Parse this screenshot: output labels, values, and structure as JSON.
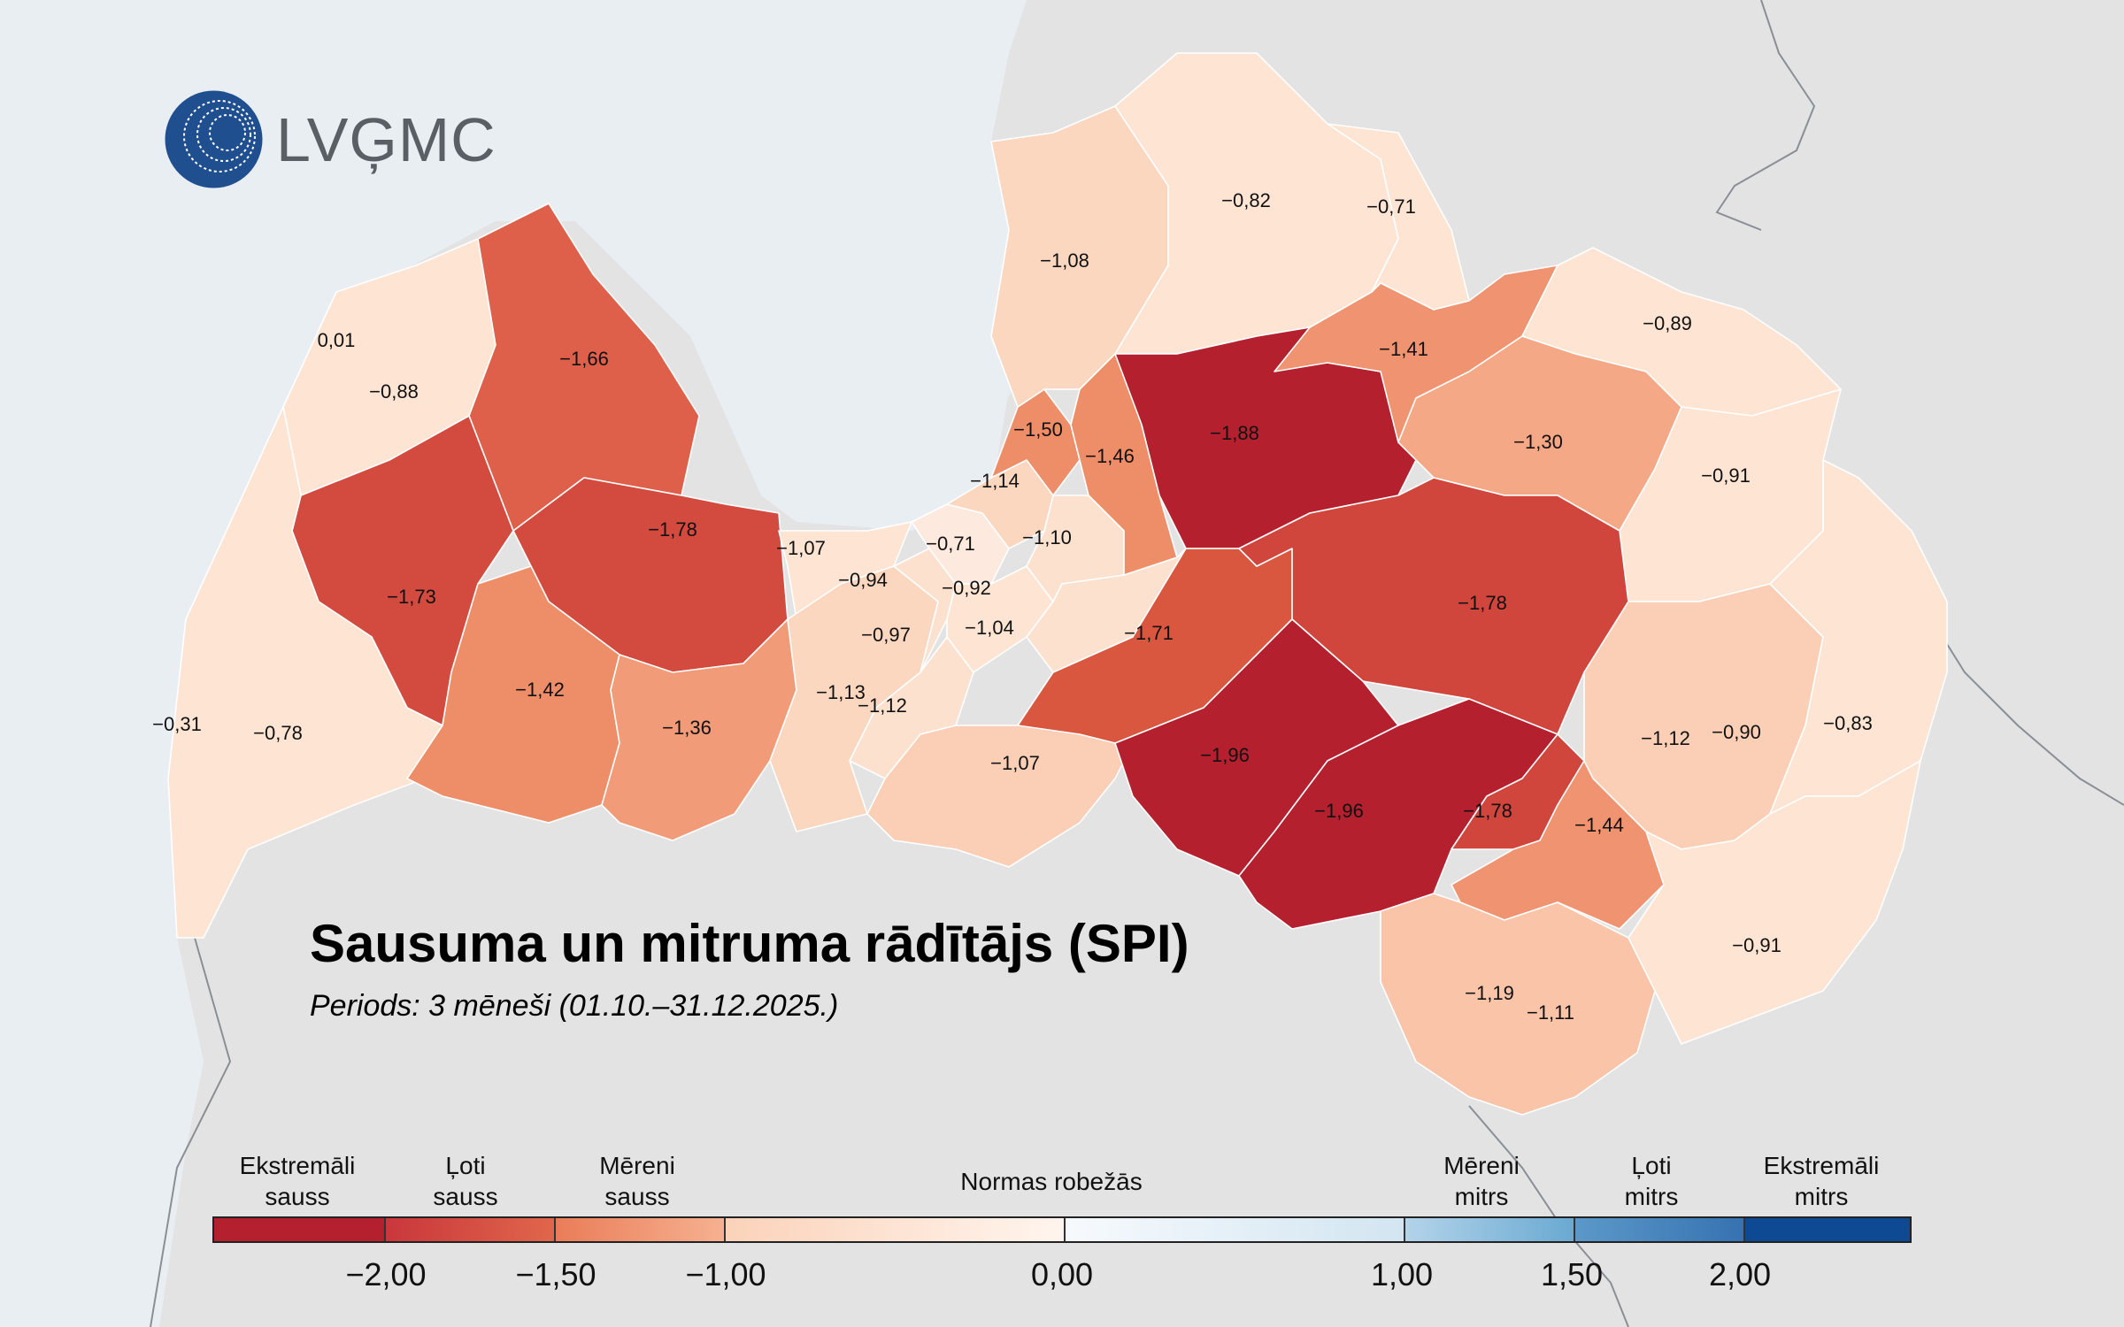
{
  "logo": {
    "text": "LVĢMC",
    "icon": "lvgmc-globe-logo"
  },
  "title": "Sausuma un mitruma rādītājs (SPI)",
  "subtitle": "Periods: 3 mēneši (01.10.–31.12.2025.)",
  "colors": {
    "sea": "#e9eef3",
    "land_outside": "#e3e3e3",
    "border": "#8a8f96",
    "extreme_dry": "#b4202e",
    "very_dry": "#d0453c",
    "moderately_dry": "#ed8a64",
    "near_normal_dry": "#f9d0b6",
    "near_normal": "#fde4d3",
    "normal_neutral": "#ffffff",
    "near_normal_wet": "#d2e5f1",
    "moderately_wet": "#6aa9d2",
    "very_wet": "#3d7db9",
    "extreme_wet": "#0d4a93"
  },
  "legend": {
    "classes": [
      {
        "label_line1": "Ekstremāli",
        "label_line2": "sauss"
      },
      {
        "label_line1": "Ļoti",
        "label_line2": "sauss"
      },
      {
        "label_line1": "Mēreni",
        "label_line2": "sauss"
      },
      {
        "label_line1": "Normas robežās",
        "label_line2": ""
      },
      {
        "label_line1": "Mēreni",
        "label_line2": "mitrs"
      },
      {
        "label_line1": "Ļoti",
        "label_line2": "mitrs"
      },
      {
        "label_line1": "Ekstremāli",
        "label_line2": "mitrs"
      }
    ],
    "ticks": [
      "−2,00",
      "−1,50",
      "−1,00",
      "0,00",
      "1,00",
      "1,50",
      "2,00"
    ],
    "range": [
      -2.5,
      2.5
    ]
  },
  "regions": [
    {
      "label": "0,01",
      "value": 0.01
    },
    {
      "label": "−0,88",
      "value": -0.88
    },
    {
      "label": "−1,66",
      "value": -1.66
    },
    {
      "label": "−1,73",
      "value": -1.73
    },
    {
      "label": "−1,78",
      "value": -1.78
    },
    {
      "label": "−0,31",
      "value": -0.31
    },
    {
      "label": "−0,78",
      "value": -0.78
    },
    {
      "label": "−1,42",
      "value": -1.42
    },
    {
      "label": "−1,36",
      "value": -1.36
    },
    {
      "label": "−1,07",
      "value": -1.07
    },
    {
      "label": "−0,94",
      "value": -0.94
    },
    {
      "label": "−0,97",
      "value": -0.97
    },
    {
      "label": "−1,13",
      "value": -1.13
    },
    {
      "label": "−1,12",
      "value": -1.12
    },
    {
      "label": "−1,07",
      "value": -1.07
    },
    {
      "label": "−1,08",
      "value": -1.08
    },
    {
      "label": "−1,50",
      "value": -1.5
    },
    {
      "label": "−1,14",
      "value": -1.14
    },
    {
      "label": "−1,46",
      "value": -1.46
    },
    {
      "label": "−0,71",
      "value": -0.71
    },
    {
      "label": "−1,10",
      "value": -1.1
    },
    {
      "label": "−0,92",
      "value": -0.92
    },
    {
      "label": "−1,04",
      "value": -1.04
    },
    {
      "label": "−0,82",
      "value": -0.82
    },
    {
      "label": "−0,71",
      "value": -0.71
    },
    {
      "label": "−1,88",
      "value": -1.88
    },
    {
      "label": "−1,41",
      "value": -1.41
    },
    {
      "label": "−1,71",
      "value": -1.71
    },
    {
      "label": "−1,30",
      "value": -1.3
    },
    {
      "label": "−0,89",
      "value": -0.89
    },
    {
      "label": "−0,91",
      "value": -0.91
    },
    {
      "label": "−1,78",
      "value": -1.78
    },
    {
      "label": "−1,96",
      "value": -1.96
    },
    {
      "label": "−1,96",
      "value": -1.96
    },
    {
      "label": "−1,78",
      "value": -1.78
    },
    {
      "label": "−1,44",
      "value": -1.44
    },
    {
      "label": "−1,12",
      "value": -1.12
    },
    {
      "label": "−0,90",
      "value": -0.9
    },
    {
      "label": "−0,83",
      "value": -0.83
    },
    {
      "label": "−1,19",
      "value": -1.19
    },
    {
      "label": "−1,11",
      "value": -1.11
    },
    {
      "label": "−0,91",
      "value": -0.91
    }
  ]
}
